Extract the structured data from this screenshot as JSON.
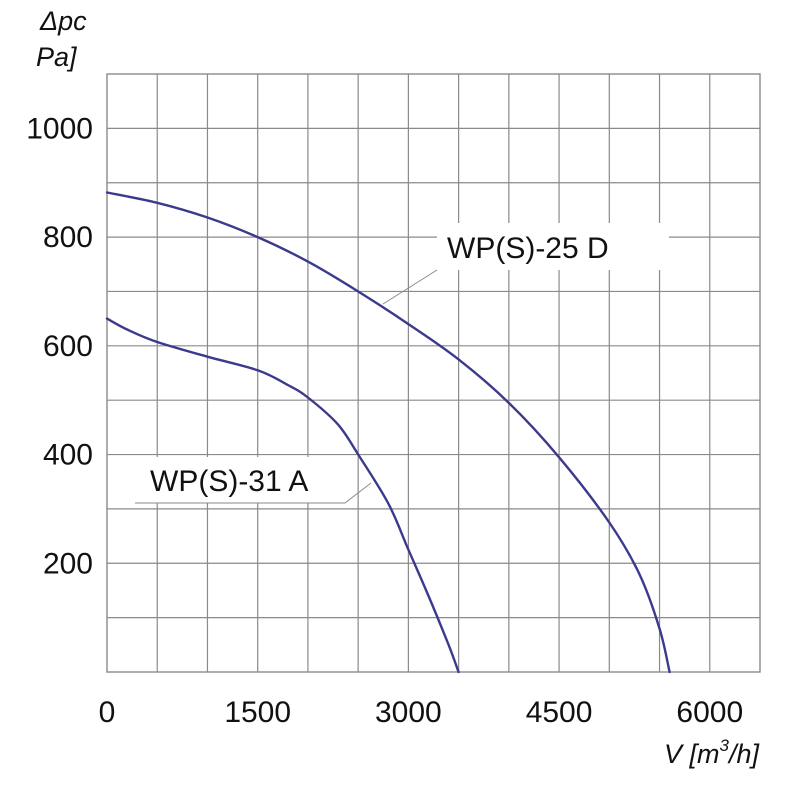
{
  "chart_data": {
    "type": "line",
    "title": "",
    "ylabel": {
      "line1": "Δpc",
      "line2": "Pa]"
    },
    "xlabel": {
      "prefix": "V [m",
      "sup": "3",
      "suffix": "/h]"
    },
    "xlim": [
      0,
      6500
    ],
    "ylim": [
      0,
      1100
    ],
    "x_ticks": [
      {
        "value": 0,
        "label": "0"
      },
      {
        "value": 1500,
        "label": "1500"
      },
      {
        "value": 3000,
        "label": "3000"
      },
      {
        "value": 4500,
        "label": "4500"
      },
      {
        "value": 6000,
        "label": "6000"
      }
    ],
    "y_ticks": [
      {
        "value": 200,
        "label": "200"
      },
      {
        "value": 400,
        "label": "400"
      },
      {
        "value": 600,
        "label": "600"
      },
      {
        "value": 800,
        "label": "800"
      },
      {
        "value": 1000,
        "label": "1000"
      }
    ],
    "x_grid_step": 500,
    "y_grid_step": 100,
    "grid": true,
    "line_color": "#3b3a8c",
    "series": [
      {
        "name": "WP(S)-25 D",
        "points": [
          [
            0,
            882
          ],
          [
            500,
            863
          ],
          [
            1000,
            836
          ],
          [
            1500,
            800
          ],
          [
            2000,
            755
          ],
          [
            2500,
            700
          ],
          [
            3000,
            640
          ],
          [
            3500,
            575
          ],
          [
            4000,
            495
          ],
          [
            4500,
            395
          ],
          [
            5000,
            275
          ],
          [
            5300,
            180
          ],
          [
            5500,
            80
          ],
          [
            5600,
            0
          ]
        ]
      },
      {
        "name": "WP(S)-31 A",
        "points": [
          [
            0,
            650
          ],
          [
            200,
            630
          ],
          [
            500,
            607
          ],
          [
            1000,
            580
          ],
          [
            1500,
            555
          ],
          [
            1800,
            528
          ],
          [
            2000,
            505
          ],
          [
            2300,
            455
          ],
          [
            2500,
            400
          ],
          [
            2800,
            310
          ],
          [
            3000,
            225
          ],
          [
            3200,
            140
          ],
          [
            3400,
            50
          ],
          [
            3500,
            0
          ]
        ]
      }
    ],
    "annotations": [
      {
        "series": "WP(S)-25 D",
        "text": "WP(S)-25 D",
        "anchor": [
          2600,
          680
        ]
      },
      {
        "series": "WP(S)-31 A",
        "text": "WP(S)-31 A",
        "anchor": [
          2650,
          355
        ]
      }
    ]
  }
}
